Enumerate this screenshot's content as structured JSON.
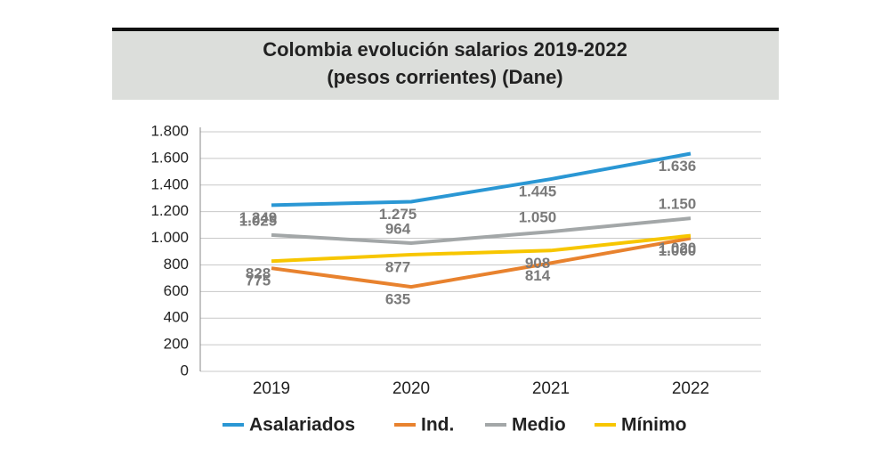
{
  "chart_data": {
    "type": "line",
    "title": [
      "Colombia evolución salarios 2019-2022",
      "(pesos corrientes) (Dane)"
    ],
    "categories": [
      "2019",
      "2020",
      "2021",
      "2022"
    ],
    "series": [
      {
        "name": "Asalariados",
        "color": "#2a97d4",
        "values": [
          1249,
          1275,
          1445,
          1636
        ],
        "value_labels": [
          "1.249",
          "1.275",
          "1.445",
          "1.636"
        ]
      },
      {
        "name": "Ind.",
        "color": "#e8822e",
        "values": [
          775,
          635,
          814,
          1000
        ],
        "value_labels": [
          "775",
          "635",
          "814",
          "1.000"
        ]
      },
      {
        "name": "Medio",
        "color": "#a3a7a8",
        "values": [
          1025,
          964,
          1050,
          1150
        ],
        "value_labels": [
          "1.025",
          "964",
          "1.050",
          "1.150"
        ]
      },
      {
        "name": "Mínimo",
        "color": "#f7c600",
        "values": [
          828,
          877,
          908,
          1020
        ],
        "value_labels": [
          "828",
          "877",
          "908",
          "1.020"
        ]
      }
    ],
    "ylim": [
      0,
      1800
    ],
    "yticks": [
      0,
      200,
      400,
      600,
      800,
      {
        "value": 1000,
        "label": "1.000"
      },
      {
        "value": 1200,
        "label": "1.200"
      },
      {
        "value": 1400,
        "label": "1.400"
      },
      {
        "value": 1600,
        "label": "1.600"
      },
      {
        "value": 1800,
        "label": "1.800"
      }
    ],
    "grid": true
  }
}
